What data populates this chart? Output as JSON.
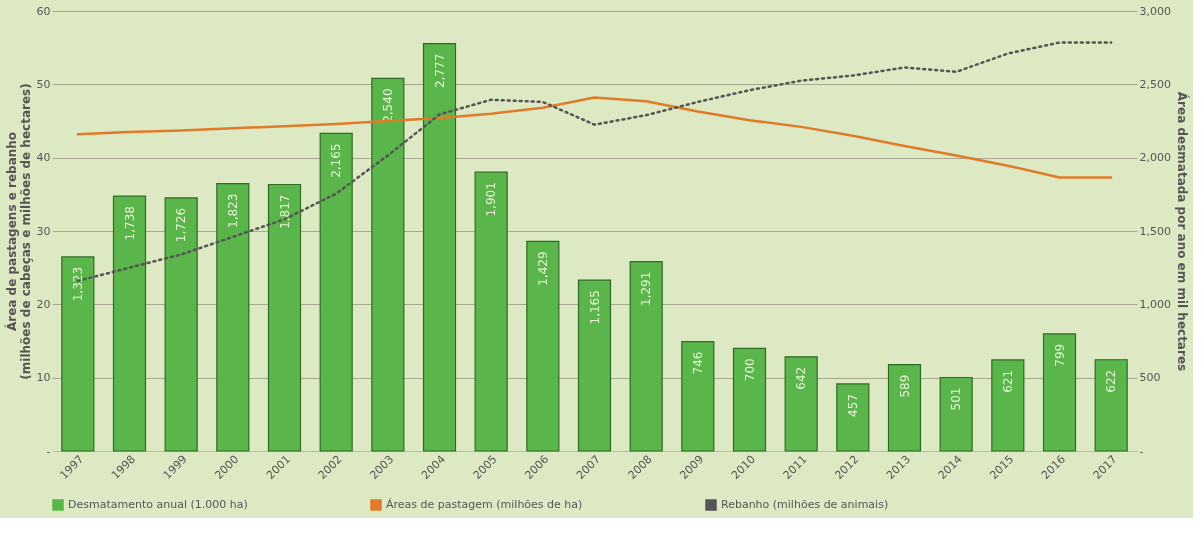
{
  "chart_data": {
    "type": "bar",
    "ylabel": "Área de pastagens e rebanho\n(milhões de cabeças e milhões de hectares)",
    "y2label": "Área desmatada por ano em mil hectares",
    "categories": [
      "1997",
      "1998",
      "1999",
      "2000",
      "2001",
      "2002",
      "2003",
      "2004",
      "2005",
      "2006",
      "2007",
      "2008",
      "2009",
      "2010",
      "2011",
      "2012",
      "2013",
      "2014",
      "2015",
      "2016",
      "2017"
    ],
    "series": [
      {
        "name": "Desmatamento anual (1.000 ha)",
        "axis": "y2",
        "color": "#5ab54a",
        "values": [
          1323,
          1738,
          1726,
          1823,
          1817,
          2165,
          2540,
          2777,
          1901,
          1429,
          1165,
          1291,
          746,
          700,
          642,
          457,
          589,
          501,
          621,
          799,
          622
        ],
        "value_labels": [
          "1,323",
          "1,738",
          "1,726",
          "1,823",
          "1,817",
          "2,165",
          "2,540",
          "2,777",
          "1,901",
          "1,429",
          "1,165",
          "1,291",
          "746",
          "700",
          "642",
          "457",
          "589",
          "501",
          "621",
          "799",
          "622"
        ]
      },
      {
        "name": "Áreas de pastagem (milhões de ha)",
        "type": "line",
        "color": "#e07b2a",
        "line_style": "solid",
        "values": [
          43.2,
          43.5,
          43.7,
          44.0,
          44.3,
          44.6,
          45.0,
          45.4,
          46.0,
          46.8,
          48.2,
          47.7,
          46.3,
          45.1,
          44.2,
          43.0,
          41.6,
          40.3,
          38.9,
          37.3,
          37.3
        ]
      },
      {
        "name": "Rebanho (milhões de animais)",
        "type": "line",
        "color": "#555555",
        "line_style": "dotted",
        "values": [
          23.2,
          25.0,
          26.8,
          29.2,
          31.6,
          35.1,
          40.3,
          45.9,
          47.9,
          47.6,
          44.5,
          45.8,
          47.6,
          49.2,
          50.5,
          51.2,
          52.3,
          51.7,
          54.2,
          55.7,
          55.7
        ]
      }
    ],
    "ylim": [
      0,
      60
    ],
    "yticks": [
      {
        "value": 0,
        "label": "-"
      },
      10,
      20,
      30,
      40,
      50,
      60
    ],
    "y2lim": [
      0,
      3000
    ],
    "y2ticks": [
      {
        "value": 0,
        "label": "-"
      },
      500,
      {
        "value": 1000,
        "label": "1,000"
      },
      {
        "value": 1500,
        "label": "1,500"
      },
      {
        "value": 2000,
        "label": "2,000"
      },
      {
        "value": 2500,
        "label": "2,500"
      },
      {
        "value": 3000,
        "label": "3,000"
      }
    ],
    "grid": "y",
    "legend": "bottom",
    "marker": "none"
  }
}
